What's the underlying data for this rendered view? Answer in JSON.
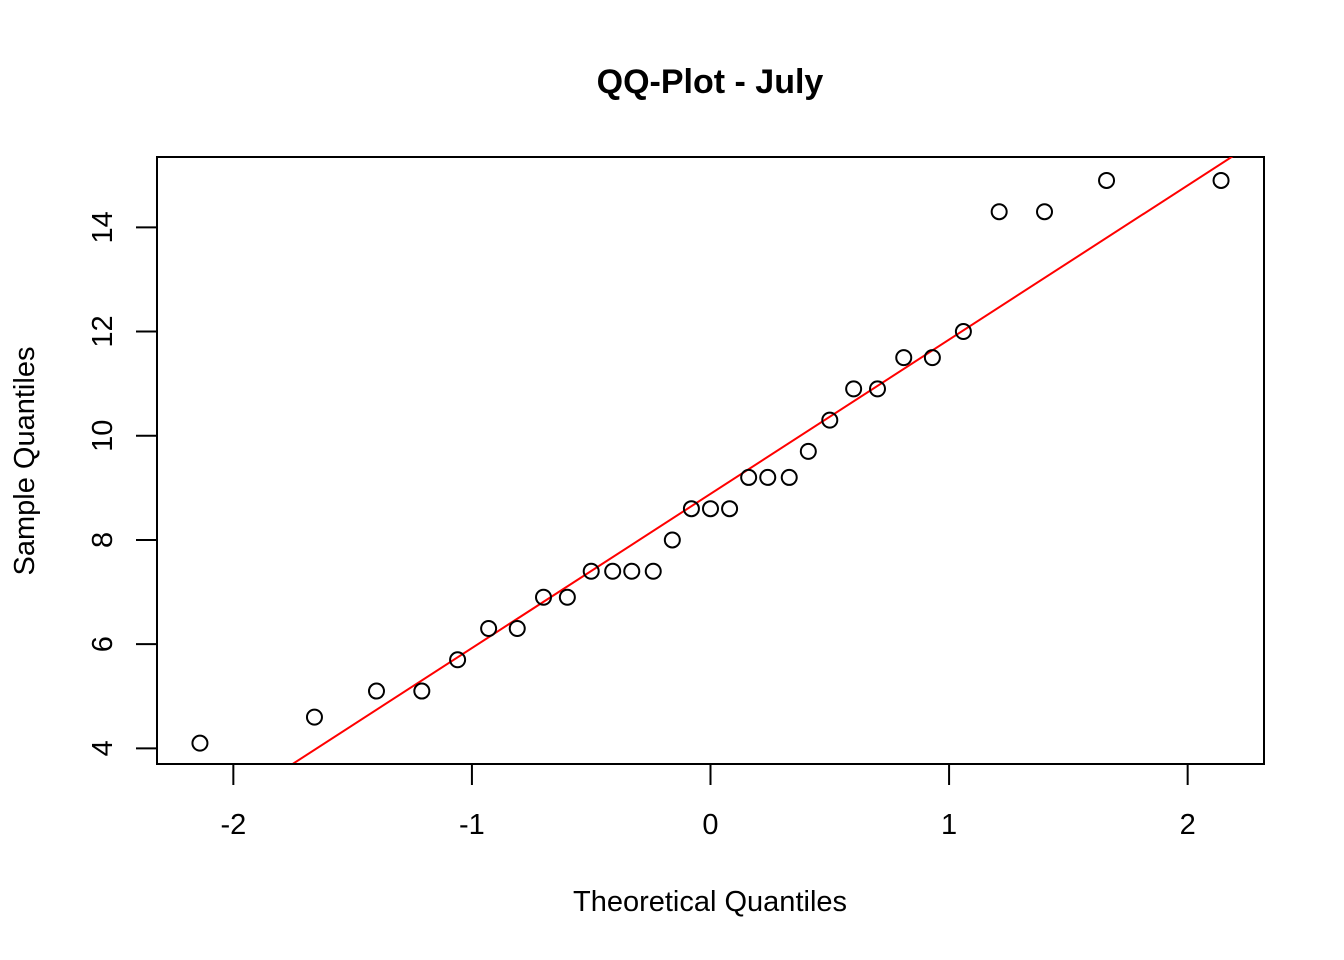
{
  "chart_data": {
    "type": "scatter",
    "title": "QQ-Plot - July",
    "xlabel": "Theoretical Quantiles",
    "ylabel": "Sample Quantiles",
    "xlim": [
      -2.32,
      2.32
    ],
    "ylim": [
      3.7,
      15.35
    ],
    "xticks": [
      -2,
      -1,
      0,
      1,
      2
    ],
    "xtick_labels": [
      "-2",
      "-1",
      "0",
      "1",
      "2"
    ],
    "yticks": [
      4,
      6,
      8,
      10,
      12,
      14
    ],
    "ytick_labels": [
      "4",
      "6",
      "8",
      "10",
      "12",
      "14"
    ],
    "grid": false,
    "point_color": "#000000",
    "line_color": "#ff0000",
    "points": [
      {
        "x": -2.14,
        "y": 4.1
      },
      {
        "x": -1.66,
        "y": 4.6
      },
      {
        "x": -1.4,
        "y": 5.1
      },
      {
        "x": -1.21,
        "y": 5.1
      },
      {
        "x": -1.06,
        "y": 5.7
      },
      {
        "x": -0.93,
        "y": 6.3
      },
      {
        "x": -0.81,
        "y": 6.3
      },
      {
        "x": -0.7,
        "y": 6.9
      },
      {
        "x": -0.6,
        "y": 6.9
      },
      {
        "x": -0.5,
        "y": 7.4
      },
      {
        "x": -0.41,
        "y": 7.4
      },
      {
        "x": -0.33,
        "y": 7.4
      },
      {
        "x": -0.24,
        "y": 7.4
      },
      {
        "x": -0.16,
        "y": 8.0
      },
      {
        "x": -0.08,
        "y": 8.6
      },
      {
        "x": 0.0,
        "y": 8.6
      },
      {
        "x": 0.08,
        "y": 8.6
      },
      {
        "x": 0.16,
        "y": 9.2
      },
      {
        "x": 0.24,
        "y": 9.2
      },
      {
        "x": 0.33,
        "y": 9.2
      },
      {
        "x": 0.41,
        "y": 9.7
      },
      {
        "x": 0.5,
        "y": 10.3
      },
      {
        "x": 0.6,
        "y": 10.9
      },
      {
        "x": 0.7,
        "y": 10.9
      },
      {
        "x": 0.81,
        "y": 11.5
      },
      {
        "x": 0.93,
        "y": 11.5
      },
      {
        "x": 1.06,
        "y": 12.0
      },
      {
        "x": 1.21,
        "y": 14.3
      },
      {
        "x": 1.4,
        "y": 14.3
      },
      {
        "x": 1.66,
        "y": 14.9
      },
      {
        "x": 2.14,
        "y": 14.9
      }
    ],
    "reference_line": {
      "intercept": 8.885,
      "slope": 2.96
    }
  }
}
